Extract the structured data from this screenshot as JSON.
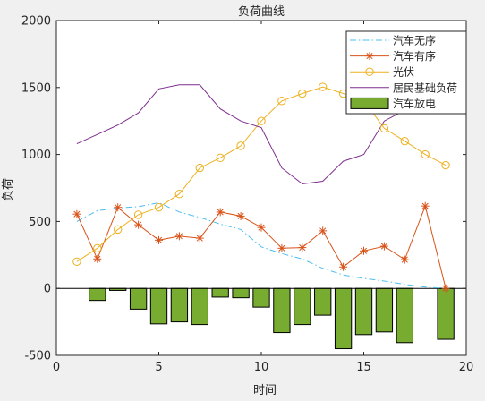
{
  "chart_data": {
    "type": "line",
    "title": "负荷曲线",
    "xlabel": "时间",
    "ylabel": "负荷",
    "xlim": [
      0,
      20
    ],
    "ylim": [
      -500,
      2000
    ],
    "xticks": [
      0,
      5,
      10,
      15,
      20
    ],
    "yticks": [
      -500,
      0,
      500,
      1000,
      1500,
      2000
    ],
    "grid": false,
    "legend_location": "top-right",
    "x": [
      1,
      2,
      3,
      4,
      5,
      6,
      7,
      8,
      9,
      10,
      11,
      12,
      13,
      14,
      15,
      16,
      17,
      18,
      19
    ],
    "series": [
      {
        "name": "汽车无序",
        "type": "line",
        "style": "dash-dot",
        "color": "#4dbeee",
        "values": [
          500,
          580,
          600,
          610,
          640,
          570,
          530,
          480,
          440,
          310,
          260,
          220,
          150,
          100,
          75,
          55,
          30,
          10,
          0
        ]
      },
      {
        "name": "汽车有序",
        "type": "line",
        "marker": "asterisk",
        "color": "#d95319",
        "values": [
          555,
          220,
          605,
          475,
          360,
          390,
          375,
          570,
          540,
          455,
          300,
          305,
          430,
          160,
          280,
          315,
          215,
          615,
          0
        ]
      },
      {
        "name": "光伏",
        "type": "line",
        "marker": "circle",
        "color": "#edb120",
        "values": [
          200,
          300,
          440,
          550,
          605,
          705,
          900,
          975,
          1065,
          1250,
          1400,
          1455,
          1505,
          1455,
          1405,
          1195,
          1100,
          1000,
          920
        ]
      },
      {
        "name": "居民基础负荷",
        "type": "line",
        "color": "#7e2f8e",
        "values": [
          1080,
          1150,
          1220,
          1310,
          1490,
          1520,
          1520,
          1340,
          1250,
          1200,
          900,
          780,
          800,
          950,
          1000,
          1250,
          1330,
          null,
          null
        ]
      },
      {
        "name": "汽车放电",
        "type": "bar",
        "color": "#77ac30",
        "values": [
          0,
          -90,
          -15,
          -155,
          -265,
          -250,
          -270,
          -65,
          -70,
          -140,
          -330,
          -270,
          -200,
          -450,
          -345,
          -325,
          -405,
          0,
          -380
        ]
      }
    ]
  }
}
